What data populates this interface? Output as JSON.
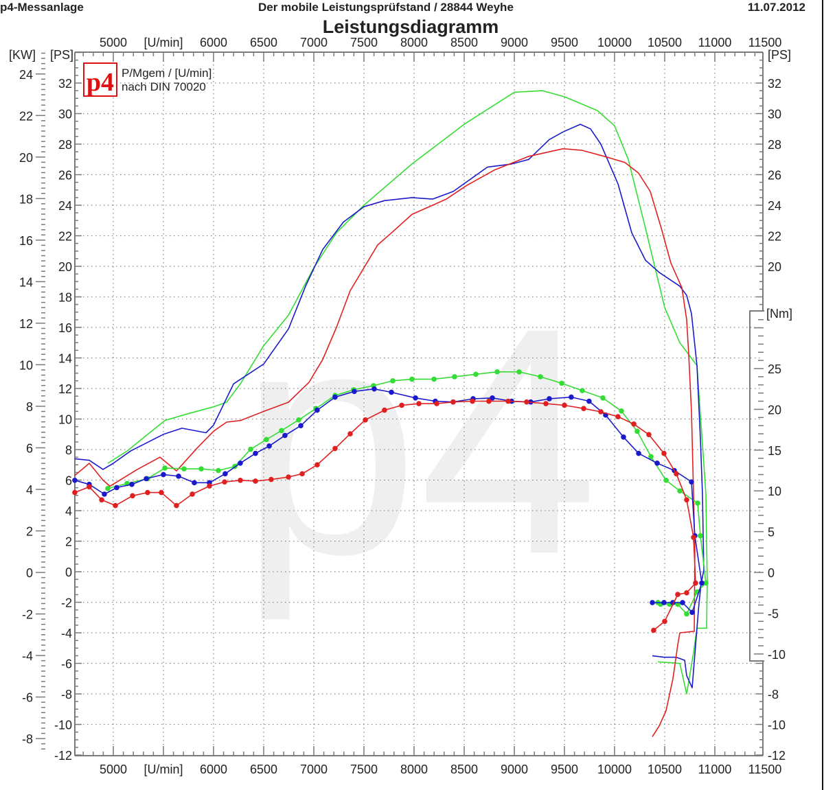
{
  "header": {
    "left": "p4-Messanlage",
    "center": "Der mobile Leistungsprüfstand  / 28844 Weyhe",
    "date": "11.07.2012"
  },
  "title": "Leistungsdiagramm",
  "legend": {
    "logo_text": "p4",
    "line1": "P/Mgem / [U/min]",
    "line2": "nach DIN 70020"
  },
  "watermark": "p4",
  "colors": {
    "green": "#33dd33",
    "blue": "#1a1acc",
    "red": "#e02020",
    "grid": "#888888",
    "axis": "#7a7a7a",
    "watermark": "#efefef",
    "logo": "#dd1111"
  },
  "chart_data": {
    "type": "line",
    "title": "Leistungsdiagramm",
    "grid": true,
    "xlim": [
      4616,
      11480
    ],
    "x_ticks": [
      5000,
      5500,
      6000,
      6500,
      7000,
      7500,
      8000,
      8500,
      9000,
      9500,
      10000,
      10500,
      11000,
      11500
    ],
    "x_tick_labels": [
      "5000",
      "[U/min]",
      "6000",
      "6500",
      "7000",
      "7500",
      "8000",
      "8500",
      "9000",
      "9500",
      "10000",
      "10500",
      "11000",
      "11500"
    ],
    "y_left_kw": {
      "label": "[KW]",
      "ticks": [
        24,
        22,
        20,
        18,
        16,
        14,
        12,
        10,
        8,
        6,
        4,
        2,
        0,
        -2,
        -4,
        -6,
        -8
      ]
    },
    "y_left_ps": {
      "label": "[PS]",
      "ylim": [
        -12,
        34
      ],
      "ticks": [
        32,
        30,
        28,
        26,
        24,
        22,
        20,
        18,
        16,
        14,
        12,
        10,
        8,
        6,
        4,
        2,
        0,
        -2,
        -4,
        -6,
        -8,
        -10,
        -12
      ]
    },
    "y_right_ps": {
      "label": "[PS]",
      "ticks": [
        32,
        30,
        28,
        26,
        24,
        22,
        20,
        -8,
        -10,
        -12
      ]
    },
    "y_right_nm": {
      "label": "[Nm]",
      "ticks": [
        25,
        20,
        15,
        10,
        5,
        0,
        -5,
        -10
      ]
    },
    "series": [
      {
        "quantity": "power",
        "axis": "PS",
        "color": "#33dd33",
        "markers": false,
        "points": [
          [
            4945,
            7.1
          ],
          [
            5137,
            7.9
          ],
          [
            5514,
            9.9
          ],
          [
            5719,
            10.3
          ],
          [
            6000,
            10.8
          ],
          [
            6130,
            11.1
          ],
          [
            6267,
            12.3
          ],
          [
            6500,
            14.8
          ],
          [
            6747,
            16.8
          ],
          [
            7000,
            19.9
          ],
          [
            7226,
            22.2
          ],
          [
            7500,
            24.0
          ],
          [
            7979,
            26.7
          ],
          [
            8500,
            29.3
          ],
          [
            9000,
            31.4
          ],
          [
            9281,
            31.5
          ],
          [
            9500,
            31.1
          ],
          [
            9829,
            30.2
          ],
          [
            10000,
            29.2
          ],
          [
            10137,
            27.0
          ],
          [
            10308,
            22.5
          ],
          [
            10500,
            17.3
          ],
          [
            10651,
            15.0
          ],
          [
            10822,
            13.5
          ],
          [
            10911,
            5.1
          ],
          [
            10925,
            -0.8
          ],
          [
            10918,
            -3.7
          ],
          [
            10822,
            -3.7
          ],
          [
            10788,
            -5.3
          ],
          [
            10719,
            -8.0
          ],
          [
            10651,
            -6.0
          ],
          [
            10432,
            -5.9
          ]
        ]
      },
      {
        "quantity": "power",
        "axis": "PS",
        "color": "#1a1acc",
        "markers": false,
        "points": [
          [
            4616,
            7.4
          ],
          [
            4760,
            7.3
          ],
          [
            4897,
            6.7
          ],
          [
            5000,
            7.1
          ],
          [
            5171,
            7.9
          ],
          [
            5500,
            9.0
          ],
          [
            5685,
            9.4
          ],
          [
            5925,
            9.1
          ],
          [
            6000,
            9.6
          ],
          [
            6199,
            12.3
          ],
          [
            6500,
            13.6
          ],
          [
            6747,
            15.9
          ],
          [
            6918,
            18.7
          ],
          [
            7089,
            21.1
          ],
          [
            7295,
            22.9
          ],
          [
            7500,
            23.9
          ],
          [
            7705,
            24.3
          ],
          [
            7979,
            24.5
          ],
          [
            8185,
            24.4
          ],
          [
            8390,
            24.9
          ],
          [
            8733,
            26.5
          ],
          [
            8973,
            26.7
          ],
          [
            9144,
            27.0
          ],
          [
            9349,
            28.3
          ],
          [
            9486,
            28.8
          ],
          [
            9658,
            29.3
          ],
          [
            9760,
            29.0
          ],
          [
            9863,
            28.0
          ],
          [
            10034,
            25.4
          ],
          [
            10171,
            22.2
          ],
          [
            10308,
            20.4
          ],
          [
            10445,
            19.6
          ],
          [
            10651,
            18.7
          ],
          [
            10719,
            18.1
          ],
          [
            10767,
            16.9
          ],
          [
            10822,
            13.5
          ],
          [
            10856,
            8.7
          ],
          [
            10877,
            5.1
          ],
          [
            10890,
            0.1
          ],
          [
            10863,
            -0.8
          ],
          [
            10842,
            -2.1
          ],
          [
            10808,
            -4.8
          ],
          [
            10774,
            -7.6
          ],
          [
            10719,
            -6.8
          ],
          [
            10699,
            -5.8
          ],
          [
            10616,
            -5.6
          ],
          [
            10493,
            -5.6
          ],
          [
            10377,
            -5.5
          ]
        ]
      },
      {
        "quantity": "power",
        "axis": "PS",
        "color": "#e02020",
        "markers": false,
        "points": [
          [
            4616,
            6.3
          ],
          [
            4760,
            7.1
          ],
          [
            4897,
            6.0
          ],
          [
            4966,
            5.6
          ],
          [
            5240,
            6.7
          ],
          [
            5466,
            7.5
          ],
          [
            5630,
            6.6
          ],
          [
            5836,
            8.1
          ],
          [
            6000,
            9.2
          ],
          [
            6130,
            9.8
          ],
          [
            6267,
            9.9
          ],
          [
            6500,
            10.5
          ],
          [
            6747,
            11.1
          ],
          [
            6952,
            12.4
          ],
          [
            7089,
            13.9
          ],
          [
            7226,
            16.0
          ],
          [
            7363,
            18.4
          ],
          [
            7500,
            19.9
          ],
          [
            7637,
            21.4
          ],
          [
            7794,
            22.3
          ],
          [
            7979,
            23.4
          ],
          [
            8185,
            24.0
          ],
          [
            8322,
            24.4
          ],
          [
            8527,
            25.3
          ],
          [
            8801,
            26.3
          ],
          [
            9144,
            27.2
          ],
          [
            9486,
            27.7
          ],
          [
            9671,
            27.6
          ],
          [
            9897,
            27.2
          ],
          [
            10103,
            26.8
          ],
          [
            10240,
            26.1
          ],
          [
            10356,
            24.9
          ],
          [
            10466,
            22.5
          ],
          [
            10562,
            20.2
          ],
          [
            10671,
            18.6
          ],
          [
            10719,
            16.5
          ],
          [
            10740,
            14.2
          ],
          [
            10767,
            10.5
          ],
          [
            10788,
            5.1
          ],
          [
            10801,
            1.5
          ],
          [
            10795,
            -3.9
          ],
          [
            10651,
            -4.0
          ],
          [
            10630,
            -4.8
          ],
          [
            10582,
            -7.0
          ],
          [
            10514,
            -9.1
          ],
          [
            10445,
            -10.1
          ],
          [
            10377,
            -10.8
          ]
        ]
      },
      {
        "quantity": "torque",
        "axis": "Nm",
        "color": "#33dd33",
        "markers": true,
        "points": [
          [
            4945,
            10.3
          ],
          [
            5137,
            10.9
          ],
          [
            5342,
            11.5
          ],
          [
            5514,
            12.8
          ],
          [
            5705,
            12.7
          ],
          [
            5877,
            12.7
          ],
          [
            6048,
            12.5
          ],
          [
            6212,
            13.0
          ],
          [
            6370,
            15.1
          ],
          [
            6527,
            16.3
          ],
          [
            6678,
            17.4
          ],
          [
            6849,
            18.7
          ],
          [
            7021,
            20.1
          ],
          [
            7212,
            21.7
          ],
          [
            7397,
            22.4
          ],
          [
            7596,
            22.9
          ],
          [
            7788,
            23.5
          ],
          [
            7979,
            23.7
          ],
          [
            8199,
            23.7
          ],
          [
            8404,
            24.0
          ],
          [
            8616,
            24.3
          ],
          [
            8829,
            24.6
          ],
          [
            9048,
            24.6
          ],
          [
            9260,
            24.0
          ],
          [
            9473,
            23.2
          ],
          [
            9678,
            22.3
          ],
          [
            9883,
            21.4
          ],
          [
            10068,
            19.8
          ],
          [
            10226,
            17.3
          ],
          [
            10363,
            14.2
          ],
          [
            10514,
            11.3
          ],
          [
            10651,
            10.0
          ],
          [
            10829,
            8.5
          ],
          [
            10856,
            4.5
          ],
          [
            10911,
            -1.3
          ],
          [
            10822,
            -2.4
          ],
          [
            10719,
            -5.1
          ],
          [
            10630,
            -3.9
          ],
          [
            10548,
            -3.9
          ],
          [
            10459,
            -3.9
          ],
          [
            10432,
            -3.7
          ]
        ]
      },
      {
        "quantity": "torque",
        "axis": "Nm",
        "color": "#1a1acc",
        "markers": true,
        "points": [
          [
            4616,
            11.3
          ],
          [
            4760,
            10.8
          ],
          [
            4911,
            9.6
          ],
          [
            5034,
            10.4
          ],
          [
            5185,
            10.8
          ],
          [
            5329,
            11.5
          ],
          [
            5500,
            12.0
          ],
          [
            5651,
            11.8
          ],
          [
            5808,
            11.0
          ],
          [
            5959,
            11.0
          ],
          [
            6116,
            12.1
          ],
          [
            6267,
            13.4
          ],
          [
            6418,
            14.6
          ],
          [
            6555,
            15.5
          ],
          [
            6712,
            16.8
          ],
          [
            6870,
            18.0
          ],
          [
            7034,
            19.9
          ],
          [
            7212,
            21.5
          ],
          [
            7404,
            22.2
          ],
          [
            7603,
            22.5
          ],
          [
            7774,
            22.1
          ],
          [
            8014,
            21.4
          ],
          [
            8212,
            21.0
          ],
          [
            8390,
            20.9
          ],
          [
            8589,
            21.3
          ],
          [
            8781,
            21.4
          ],
          [
            8973,
            21.0
          ],
          [
            9164,
            20.9
          ],
          [
            9349,
            21.3
          ],
          [
            9568,
            21.5
          ],
          [
            9746,
            21.0
          ],
          [
            9911,
            19.3
          ],
          [
            10089,
            16.6
          ],
          [
            10240,
            14.6
          ],
          [
            10425,
            13.4
          ],
          [
            10596,
            12.5
          ],
          [
            10767,
            11.1
          ],
          [
            10801,
            4.5
          ],
          [
            10870,
            -1.3
          ],
          [
            10774,
            -4.9
          ],
          [
            10678,
            -3.7
          ],
          [
            10582,
            -3.7
          ],
          [
            10493,
            -3.7
          ],
          [
            10377,
            -3.7
          ]
        ]
      },
      {
        "quantity": "torque",
        "axis": "Nm",
        "color": "#e02020",
        "markers": true,
        "points": [
          [
            4616,
            9.8
          ],
          [
            4760,
            10.5
          ],
          [
            4884,
            8.9
          ],
          [
            5021,
            8.2
          ],
          [
            5192,
            9.4
          ],
          [
            5342,
            9.8
          ],
          [
            5479,
            9.8
          ],
          [
            5630,
            8.2
          ],
          [
            5788,
            9.6
          ],
          [
            5959,
            10.6
          ],
          [
            6110,
            11.1
          ],
          [
            6267,
            11.3
          ],
          [
            6418,
            11.2
          ],
          [
            6575,
            11.4
          ],
          [
            6747,
            11.7
          ],
          [
            6884,
            12.1
          ],
          [
            7034,
            13.2
          ],
          [
            7212,
            15.2
          ],
          [
            7363,
            17.0
          ],
          [
            7514,
            18.7
          ],
          [
            7705,
            19.9
          ],
          [
            7877,
            20.5
          ],
          [
            8048,
            20.7
          ],
          [
            8226,
            20.7
          ],
          [
            8390,
            20.9
          ],
          [
            8582,
            21.0
          ],
          [
            8746,
            21.0
          ],
          [
            8938,
            21.0
          ],
          [
            9123,
            20.9
          ],
          [
            9315,
            20.7
          ],
          [
            9500,
            20.5
          ],
          [
            9692,
            20.1
          ],
          [
            9863,
            19.7
          ],
          [
            10034,
            19.1
          ],
          [
            10192,
            18.2
          ],
          [
            10342,
            16.9
          ],
          [
            10493,
            14.6
          ],
          [
            10616,
            12.1
          ],
          [
            10719,
            8.9
          ],
          [
            10788,
            4.3
          ],
          [
            10808,
            -1.3
          ],
          [
            10719,
            -2.5
          ],
          [
            10630,
            -2.7
          ],
          [
            10500,
            -6.0
          ],
          [
            10390,
            -7.1
          ]
        ]
      }
    ]
  }
}
